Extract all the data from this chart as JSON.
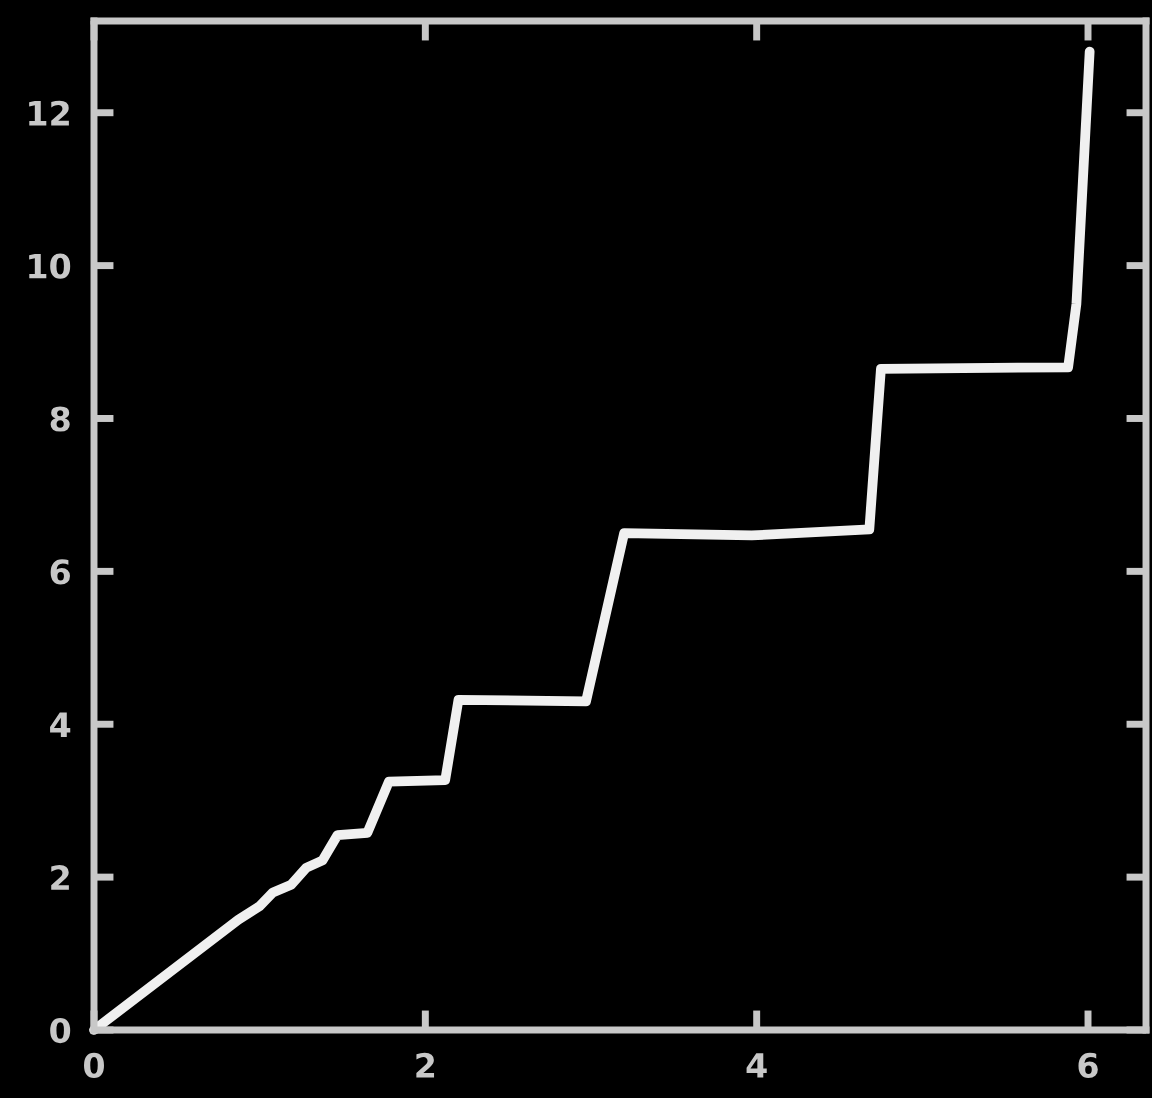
{
  "chart_data": {
    "type": "line",
    "x": [
      0,
      0.87,
      1.0,
      1.08,
      1.19,
      1.28,
      1.38,
      1.47,
      1.65,
      1.78,
      2.12,
      2.2,
      2.97,
      3.2,
      3.97,
      4.68,
      4.75,
      5.88,
      5.93,
      6.01
    ],
    "series": [
      {
        "color": "#f0f0f0",
        "values": [
          0,
          1.44,
          1.62,
          1.8,
          1.9,
          2.12,
          2.22,
          2.55,
          2.58,
          3.25,
          3.27,
          4.32,
          4.3,
          6.5,
          6.47,
          6.55,
          8.65,
          8.67,
          9.5,
          12.8
        ]
      }
    ],
    "xlim": [
      0,
      6.35
    ],
    "ylim": [
      0,
      13.2
    ],
    "xticks": [
      0,
      2,
      4,
      6
    ],
    "yticks": [
      0,
      2,
      4,
      6,
      8,
      10,
      12
    ],
    "grid": false,
    "legend": false,
    "marker": "none",
    "line_style": "solid"
  }
}
